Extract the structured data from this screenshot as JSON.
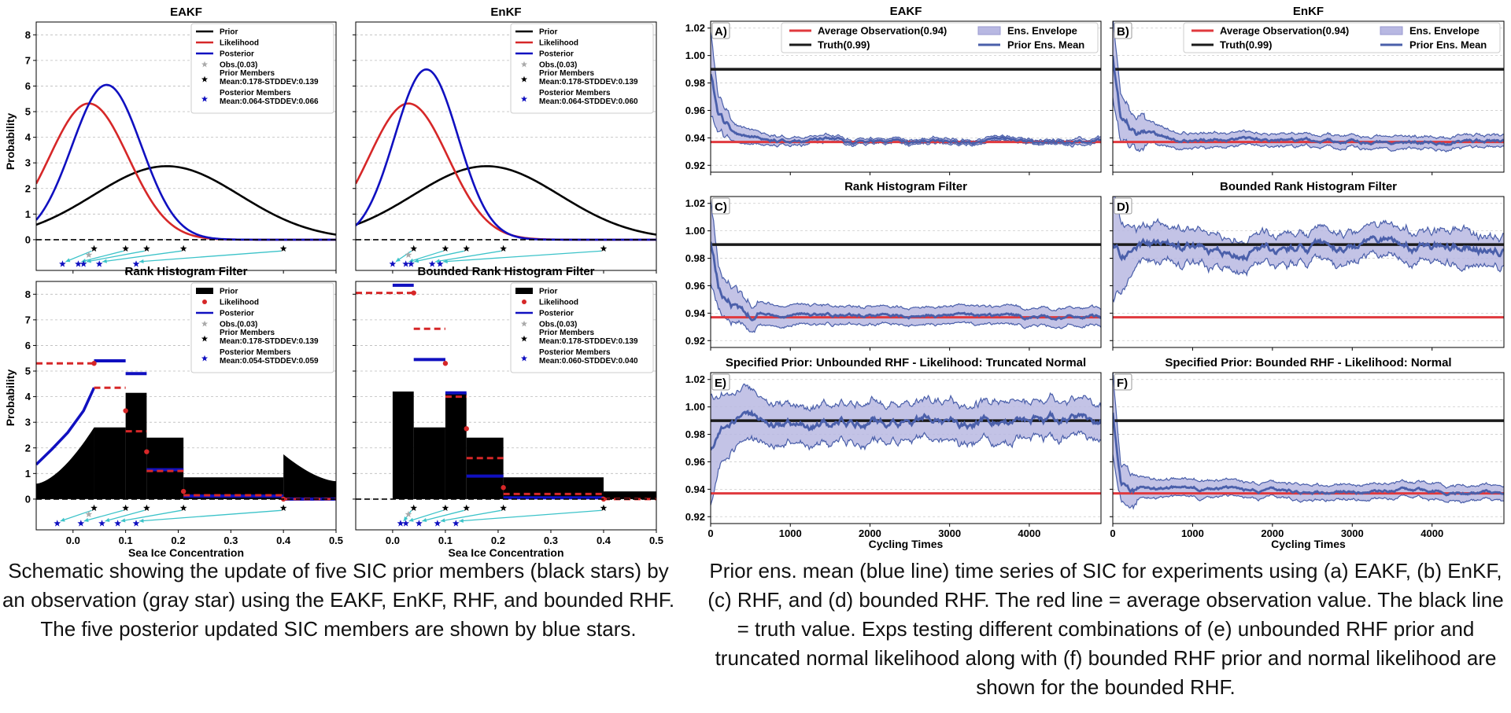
{
  "left_figure": {
    "panels": [
      {
        "key": "eakf",
        "title": "EAKF",
        "type": "gaussian",
        "legend": {
          "prior": "Prior",
          "likelihood": "Likelihood",
          "posterior": "Posterior",
          "obs": "Obs.(0.03)",
          "prior_members": "Prior Members",
          "prior_stats": "Mean:0.178-STDDEV:0.139",
          "posterior_members": "Posterior Members",
          "posterior_stats": "Mean:0.064-STDDEV:0.066"
        }
      },
      {
        "key": "enkf",
        "title": "EnKF",
        "type": "gaussian",
        "legend": {
          "prior": "Prior",
          "likelihood": "Likelihood",
          "posterior": "Posterior",
          "obs": "Obs.(0.03)",
          "prior_members": "Prior Members",
          "prior_stats": "Mean:0.178-STDDEV:0.139",
          "posterior_members": "Posterior Members",
          "posterior_stats": "Mean:0.064-STDDEV:0.060"
        }
      },
      {
        "key": "rhf",
        "title": "Rank Histogram Filter",
        "type": "histogram",
        "legend": {
          "prior": "Prior",
          "likelihood": "Likelihood",
          "posterior": "Posterior",
          "obs": "Obs.(0.03)",
          "prior_members": "Prior Members",
          "prior_stats": "Mean:0.178-STDDEV:0.139",
          "posterior_members": "Posterior Members",
          "posterior_stats": "Mean:0.054-STDDEV:0.059"
        }
      },
      {
        "key": "brhf",
        "title": "Bounded Rank Histogram Filter",
        "type": "histogram",
        "legend": {
          "prior": "Prior",
          "likelihood": "Likelihood",
          "posterior": "Posterior",
          "obs": "Obs.(0.03)",
          "prior_members": "Prior Members",
          "prior_stats": "Mean:0.178-STDDEV:0.139",
          "posterior_members": "Posterior Members",
          "posterior_stats": "Mean:0.060-STDDEV:0.040"
        }
      }
    ],
    "ylabel": "Probability",
    "xlabel": "Sea Ice Concentration",
    "caption": "Schematic showing the update of five SIC prior members (black stars) by an observation (gray star) using the EAKF, EnKF, RHF, and bounded RHF. The five posterior updated SIC members are shown by blue stars."
  },
  "right_figure": {
    "panels": [
      {
        "key": "A",
        "label": "A)",
        "title": "EAKF"
      },
      {
        "key": "B",
        "label": "B)",
        "title": "EnKF"
      },
      {
        "key": "C",
        "label": "C)",
        "title": "Rank Histogram Filter"
      },
      {
        "key": "D",
        "label": "D)",
        "title": "Bounded Rank Histogram Filter"
      },
      {
        "key": "E",
        "label": "E)",
        "title": "Specified Prior: Unbounded RHF - Likelihood: Truncated Normal"
      },
      {
        "key": "F",
        "label": "F)",
        "title": "Specified Prior: Bounded RHF - Likelihood: Normal"
      }
    ],
    "legend": {
      "avg_obs": "Average Observation(0.94)",
      "truth": "Truth(0.99)",
      "envelope": "Ens. Envelope",
      "mean": "Prior Ens. Mean"
    },
    "xlabel": "Cycling Times",
    "caption": "Prior ens. mean (blue line) time series of SIC for experiments using (a) EAKF, (b) EnKF, (c) RHF, and (d) bounded RHF. The red line = average observation value. The black line =  truth value. Exps testing different combinations of (e) unbounded RHF prior and truncated normal likelihood along with (f) bounded RHF prior and normal likelihood are shown for the bounded RHF."
  },
  "colors": {
    "prior": "#000000",
    "likelihood": "#d62728",
    "posterior": "#1010c0",
    "obs": "#aaaaaa",
    "arrow": "#3cc3c9",
    "envelope": "#b8b8e2",
    "mean": "#4a5faa",
    "avg_obs": "#e0393e",
    "truth": "#1a1a1a"
  },
  "chart_data": [
    {
      "type": "line",
      "panel": "EAKF",
      "xlim": [
        -0.07,
        0.5
      ],
      "ylim": [
        -1.2,
        8.5
      ],
      "xticks": [
        0.0,
        0.1,
        0.2,
        0.3,
        0.4,
        0.5
      ],
      "yticks": [
        0,
        1,
        2,
        3,
        4,
        5,
        6,
        7,
        8
      ],
      "series": [
        {
          "name": "Prior",
          "dist": "normal",
          "mean": 0.178,
          "std": 0.139
        },
        {
          "name": "Likelihood",
          "dist": "normal",
          "mean": 0.03,
          "std": 0.075
        },
        {
          "name": "Posterior",
          "dist": "normal",
          "mean": 0.064,
          "std": 0.066
        }
      ],
      "prior_members": [
        0.04,
        0.1,
        0.14,
        0.21,
        0.4
      ],
      "posterior_members": [
        -0.02,
        0.01,
        0.02,
        0.05,
        0.12
      ],
      "obs": 0.03
    },
    {
      "type": "line",
      "panel": "EnKF",
      "xlim": [
        -0.07,
        0.5
      ],
      "ylim": [
        -1.2,
        8.5
      ],
      "xticks": [
        0.0,
        0.1,
        0.2,
        0.3,
        0.4,
        0.5
      ],
      "yticks": [
        0,
        1,
        2,
        3,
        4,
        5,
        6,
        7,
        8
      ],
      "series": [
        {
          "name": "Prior",
          "dist": "normal",
          "mean": 0.178,
          "std": 0.139
        },
        {
          "name": "Likelihood",
          "dist": "normal",
          "mean": 0.03,
          "std": 0.075
        },
        {
          "name": "Posterior",
          "dist": "normal",
          "mean": 0.064,
          "std": 0.06
        }
      ],
      "prior_members": [
        0.04,
        0.1,
        0.14,
        0.21,
        0.4
      ],
      "posterior_members": [
        0.0,
        0.025,
        0.035,
        0.075,
        0.09
      ],
      "obs": 0.03
    },
    {
      "type": "area",
      "panel": "Rank Histogram Filter",
      "xlim": [
        -0.07,
        0.5
      ],
      "ylim": [
        -1.2,
        8.5
      ],
      "xticks": [
        0.0,
        0.1,
        0.2,
        0.3,
        0.4,
        0.5
      ],
      "yticks": [
        0,
        1,
        2,
        3,
        4,
        5,
        6,
        7,
        8
      ],
      "prior_bins": [
        {
          "x0": 0.04,
          "x1": 0.1,
          "h": 2.8
        },
        {
          "x0": 0.1,
          "x1": 0.14,
          "h": 4.15
        },
        {
          "x0": 0.14,
          "x1": 0.21,
          "h": 2.4
        },
        {
          "x0": 0.21,
          "x1": 0.4,
          "h": 0.85
        }
      ],
      "prior_tails": {
        "left": {
          "x": [
            -0.07,
            0.04
          ],
          "h": [
            0.6,
            2.8
          ]
        },
        "right": {
          "x": [
            0.4,
            0.5
          ],
          "h": [
            1.75,
            0.7
          ]
        }
      },
      "likelihood_points": [
        [
          0.04,
          5.3
        ],
        [
          0.1,
          3.45
        ],
        [
          0.14,
          1.85
        ],
        [
          0.21,
          0.3
        ],
        [
          0.4,
          0.0
        ]
      ],
      "likelihood_segments": [
        [
          -0.07,
          0.04,
          5.3
        ],
        [
          0.04,
          0.1,
          4.35
        ],
        [
          0.1,
          0.14,
          2.65
        ],
        [
          0.14,
          0.21,
          1.1
        ],
        [
          0.21,
          0.4,
          0.15
        ],
        [
          0.4,
          0.5,
          0.0
        ]
      ],
      "posterior_segments": [
        [
          0.04,
          0.1,
          5.4
        ],
        [
          0.1,
          0.14,
          4.9
        ],
        [
          0.14,
          0.21,
          1.15
        ],
        [
          0.21,
          0.4,
          0.12
        ],
        [
          0.4,
          0.5,
          0.0
        ]
      ],
      "posterior_left_curve": [
        [
          -0.07,
          1.35
        ],
        [
          -0.04,
          1.95
        ],
        [
          -0.01,
          2.6
        ],
        [
          0.02,
          3.45
        ],
        [
          0.04,
          4.35
        ]
      ],
      "prior_members": [
        0.04,
        0.1,
        0.14,
        0.21,
        0.4
      ],
      "posterior_members": [
        -0.03,
        0.015,
        0.055,
        0.085,
        0.12
      ],
      "obs": 0.03
    },
    {
      "type": "area",
      "panel": "Bounded Rank Histogram Filter",
      "xlim": [
        -0.07,
        0.5
      ],
      "ylim": [
        -1.2,
        8.5
      ],
      "xticks": [
        0.0,
        0.1,
        0.2,
        0.3,
        0.4,
        0.5
      ],
      "yticks": [
        0,
        1,
        2,
        3,
        4,
        5,
        6,
        7,
        8
      ],
      "prior_bins": [
        {
          "x0": 0.0,
          "x1": 0.04,
          "h": 4.2
        },
        {
          "x0": 0.04,
          "x1": 0.1,
          "h": 2.8
        },
        {
          "x0": 0.1,
          "x1": 0.14,
          "h": 4.15
        },
        {
          "x0": 0.14,
          "x1": 0.21,
          "h": 2.4
        },
        {
          "x0": 0.21,
          "x1": 0.4,
          "h": 0.85
        },
        {
          "x0": 0.4,
          "x1": 0.5,
          "h": 0.3
        }
      ],
      "likelihood_points": [
        [
          0.04,
          8.05
        ],
        [
          0.1,
          5.3
        ],
        [
          0.14,
          2.75
        ],
        [
          0.21,
          0.45
        ],
        [
          0.4,
          0.0
        ]
      ],
      "likelihood_segments": [
        [
          -0.07,
          0.04,
          8.05
        ],
        [
          0.04,
          0.1,
          6.65
        ],
        [
          0.1,
          0.14,
          4.0
        ],
        [
          0.14,
          0.21,
          1.6
        ],
        [
          0.21,
          0.4,
          0.2
        ],
        [
          0.4,
          0.5,
          0.0
        ]
      ],
      "posterior_segments": [
        [
          0.0,
          0.04,
          8.35
        ],
        [
          0.04,
          0.1,
          5.45
        ],
        [
          0.1,
          0.14,
          4.15
        ],
        [
          0.14,
          0.21,
          0.9
        ],
        [
          0.21,
          0.4,
          0.05
        ]
      ],
      "prior_members": [
        0.04,
        0.1,
        0.14,
        0.21,
        0.4
      ],
      "posterior_members": [
        0.015,
        0.025,
        0.05,
        0.085,
        0.12
      ],
      "obs": 0.03
    },
    {
      "type": "line",
      "panel": "A",
      "xlim": [
        0,
        4900
      ],
      "ylim": [
        0.915,
        1.025
      ],
      "xticks": [
        0,
        1000,
        2000,
        3000,
        4000
      ],
      "yticks": [
        0.92,
        0.94,
        0.96,
        0.98,
        1.0,
        1.02
      ],
      "truth": 0.99,
      "avg_obs": 0.937,
      "mean": {
        "x": [
          0,
          100,
          300,
          600,
          1000,
          1500,
          2500,
          4900
        ],
        "y": [
          0.985,
          0.955,
          0.943,
          0.94,
          0.939,
          0.938,
          0.937,
          0.937
        ]
      },
      "envelope_width": {
        "x": [
          0,
          100,
          300,
          600,
          1000,
          2000,
          4900
        ],
        "w": [
          0.03,
          0.012,
          0.006,
          0.004,
          0.002,
          0.0015,
          0.0012
        ]
      }
    },
    {
      "type": "line",
      "panel": "B",
      "xlim": [
        0,
        4900
      ],
      "ylim": [
        0.915,
        1.025
      ],
      "xticks": [
        0,
        1000,
        2000,
        3000,
        4000
      ],
      "yticks": [
        0.92,
        0.94,
        0.96,
        0.98,
        1.0,
        1.02
      ],
      "truth": 0.99,
      "avg_obs": 0.937,
      "mean": {
        "x": [
          0,
          100,
          300,
          600,
          1000,
          2000,
          4900
        ],
        "y": [
          1.0,
          0.955,
          0.944,
          0.94,
          0.939,
          0.938,
          0.937
        ]
      },
      "envelope_width": {
        "x": [
          0,
          100,
          300,
          600,
          1000,
          2000,
          4900
        ],
        "w": [
          0.03,
          0.015,
          0.009,
          0.006,
          0.005,
          0.004,
          0.004
        ]
      }
    },
    {
      "type": "line",
      "panel": "C",
      "xlim": [
        0,
        4900
      ],
      "ylim": [
        0.915,
        1.025
      ],
      "xticks": [
        0,
        1000,
        2000,
        3000,
        4000
      ],
      "yticks": [
        0.92,
        0.94,
        0.96,
        0.98,
        1.0,
        1.02
      ],
      "truth": 0.99,
      "avg_obs": 0.937,
      "mean": {
        "x": [
          0,
          100,
          300,
          600,
          1000,
          2000,
          4900
        ],
        "y": [
          0.99,
          0.958,
          0.945,
          0.94,
          0.94,
          0.938,
          0.937
        ]
      },
      "envelope_width": {
        "x": [
          0,
          100,
          300,
          600,
          1000,
          2000,
          4900
        ],
        "w": [
          0.03,
          0.015,
          0.01,
          0.008,
          0.007,
          0.006,
          0.006
        ]
      }
    },
    {
      "type": "line",
      "panel": "D",
      "xlim": [
        0,
        4900
      ],
      "ylim": [
        0.915,
        1.025
      ],
      "xticks": [
        0,
        1000,
        2000,
        3000,
        4000
      ],
      "yticks": [
        0.92,
        0.94,
        0.96,
        0.98,
        1.0,
        1.02
      ],
      "truth": 0.99,
      "avg_obs": 0.937,
      "mean": {
        "x": [
          0,
          100,
          300,
          800,
          1500,
          2200,
          3000,
          4900
        ],
        "y": [
          0.99,
          0.982,
          0.988,
          0.989,
          0.984,
          0.986,
          0.988,
          0.988
        ]
      },
      "envelope_width": {
        "x": [
          0,
          100,
          300,
          1000,
          4900
        ],
        "w": [
          0.04,
          0.025,
          0.012,
          0.01,
          0.01
        ]
      }
    },
    {
      "type": "line",
      "panel": "E",
      "xlim": [
        0,
        4900
      ],
      "ylim": [
        0.915,
        1.025
      ],
      "xticks": [
        0,
        1000,
        2000,
        3000,
        4000
      ],
      "yticks": [
        0.92,
        0.94,
        0.96,
        0.98,
        1.0,
        1.02
      ],
      "truth": 0.99,
      "avg_obs": 0.937,
      "mean": {
        "x": [
          0,
          100,
          300,
          800,
          1500,
          2200,
          3000,
          4900
        ],
        "y": [
          0.97,
          0.985,
          0.99,
          0.991,
          0.988,
          0.99,
          0.99,
          0.991
        ]
      },
      "envelope_width": {
        "x": [
          0,
          100,
          300,
          1000,
          4900
        ],
        "w": [
          0.04,
          0.025,
          0.018,
          0.013,
          0.012
        ]
      }
    },
    {
      "type": "line",
      "panel": "F",
      "xlim": [
        0,
        4900
      ],
      "ylim": [
        0.915,
        1.025
      ],
      "xticks": [
        0,
        1000,
        2000,
        3000,
        4000
      ],
      "yticks": [
        0.92,
        0.94,
        0.96,
        0.98,
        1.0,
        1.02
      ],
      "truth": 0.99,
      "avg_obs": 0.937,
      "mean": {
        "x": [
          0,
          100,
          300,
          600,
          1000,
          2000,
          4900
        ],
        "y": [
          0.995,
          0.952,
          0.943,
          0.941,
          0.94,
          0.939,
          0.938
        ]
      },
      "envelope_width": {
        "x": [
          0,
          100,
          300,
          600,
          1000,
          2000,
          4900
        ],
        "w": [
          0.03,
          0.012,
          0.008,
          0.006,
          0.006,
          0.005,
          0.005
        ]
      }
    }
  ]
}
